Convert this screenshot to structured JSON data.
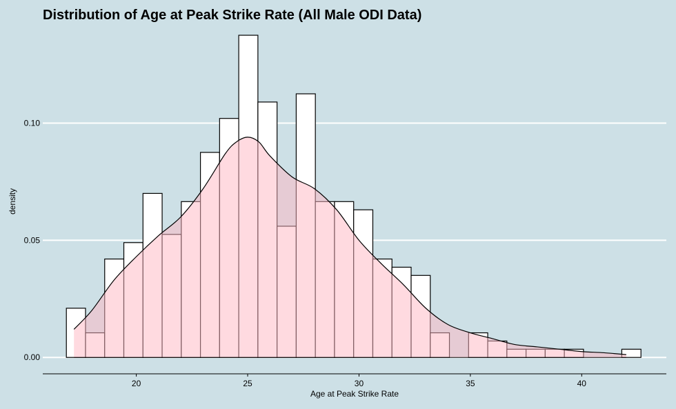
{
  "chart_data": {
    "type": "bar",
    "title": "Distribution of Age at Peak Strike Rate (All Male ODI Data)",
    "xlabel": "Age at Peak Strike Rate",
    "ylabel": "density",
    "xlim": [
      15.8,
      43.8
    ],
    "ylim": [
      -0.007,
      0.139
    ],
    "x_ticks": [
      20,
      25,
      30,
      35,
      40
    ],
    "x_tick_labels": [
      "20",
      "25",
      "30",
      "35",
      "40"
    ],
    "y_ticks": [
      0.0,
      0.05,
      0.1
    ],
    "y_tick_labels": [
      "0.00",
      "0.05",
      "0.10"
    ],
    "grid": "horizontal",
    "bin_width": 0.86,
    "bin_starts": [
      16.86,
      17.72,
      18.58,
      19.44,
      20.3,
      21.16,
      22.02,
      22.88,
      23.74,
      24.6,
      25.46,
      26.32,
      27.18,
      28.04,
      28.9,
      29.76,
      30.62,
      31.48,
      32.34,
      33.2,
      34.06,
      34.92,
      35.78,
      36.64,
      37.5,
      38.36,
      39.22,
      40.08,
      40.94,
      41.8
    ],
    "density": [
      0.021,
      0.0105,
      0.042,
      0.049,
      0.07,
      0.0525,
      0.0665,
      0.0875,
      0.102,
      0.1375,
      0.109,
      0.056,
      0.1125,
      0.0665,
      0.0665,
      0.063,
      0.042,
      0.0385,
      0.035,
      0.0105,
      0.0,
      0.0105,
      0.007,
      0.0035,
      0.0035,
      0.0035,
      0.0035,
      0.0,
      0.0,
      0.0035
    ],
    "kde_x": [
      17.2,
      18.0,
      19.0,
      20.0,
      21.0,
      22.0,
      23.0,
      24.0,
      24.5,
      25.0,
      25.5,
      26.0,
      27.0,
      28.0,
      29.0,
      30.0,
      31.0,
      32.0,
      33.0,
      34.0,
      35.0,
      36.0,
      37.0,
      38.0,
      39.0,
      40.0,
      41.0,
      42.0
    ],
    "kde_y": [
      0.012,
      0.02,
      0.033,
      0.043,
      0.052,
      0.06,
      0.072,
      0.087,
      0.092,
      0.094,
      0.092,
      0.086,
      0.077,
      0.072,
      0.063,
      0.05,
      0.04,
      0.031,
      0.021,
      0.014,
      0.0105,
      0.008,
      0.0055,
      0.0045,
      0.0035,
      0.0025,
      0.002,
      0.0012
    ],
    "colors": {
      "background": "#cde0e6",
      "histogram_fill": "#ffffff",
      "density_fill": "#ffb6c1",
      "density_fill_opacity": 0.5,
      "stroke": "#000000",
      "grid": "#ffffff"
    }
  }
}
